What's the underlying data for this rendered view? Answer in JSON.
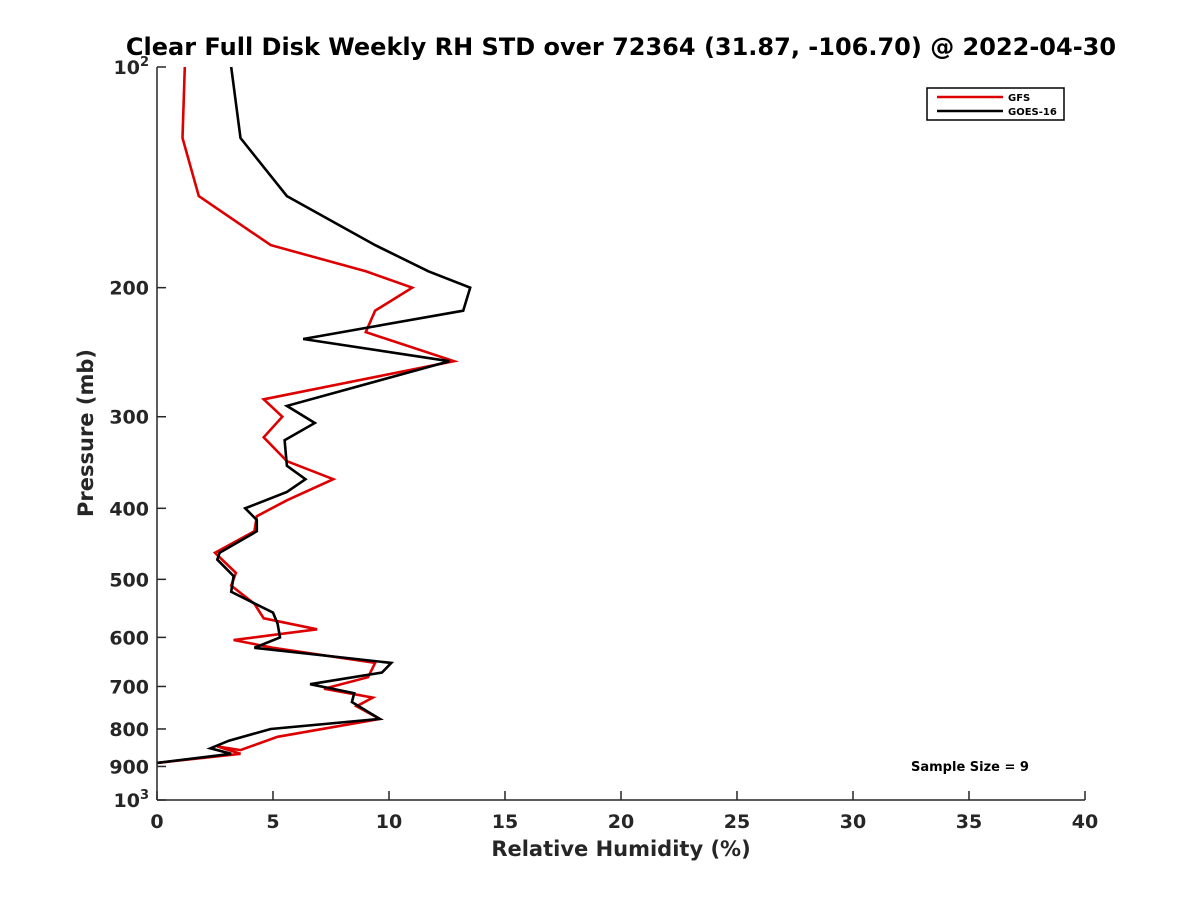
{
  "chart_data": {
    "type": "line",
    "title": "Clear Full Disk Weekly RH STD over 72364 (31.87, -106.70) @ 2022-04-30",
    "xlabel": "Relative Humidity (%)",
    "ylabel": "Pressure (mb)",
    "xlim": [
      0,
      40
    ],
    "ylim": [
      100,
      1000
    ],
    "y_scale": "log",
    "y_reversed": true,
    "x_ticks": [
      "0",
      "5",
      "10",
      "15",
      "20",
      "25",
      "30",
      "35",
      "40"
    ],
    "y_ticks": [
      {
        "value": 100,
        "base": "10",
        "exp": "2"
      },
      {
        "value": 200,
        "label": "200"
      },
      {
        "value": 300,
        "label": "300"
      },
      {
        "value": 400,
        "label": "400"
      },
      {
        "value": 500,
        "label": "500"
      },
      {
        "value": 600,
        "label": "600"
      },
      {
        "value": 700,
        "label": "700"
      },
      {
        "value": 800,
        "label": "800"
      },
      {
        "value": 900,
        "label": "900"
      },
      {
        "value": 1000,
        "base": "10",
        "exp": "3"
      }
    ],
    "grid": false,
    "legend_position": "top-right",
    "annotation": "Sample Size = 9",
    "series": [
      {
        "name": "GFS",
        "color": "#dd0000",
        "points": [
          [
            1.2,
            100
          ],
          [
            1.1,
            125
          ],
          [
            1.8,
            150
          ],
          [
            4.9,
            175
          ],
          [
            9.0,
            190
          ],
          [
            11.0,
            200
          ],
          [
            9.4,
            215
          ],
          [
            9.0,
            230
          ],
          [
            12.8,
            252
          ],
          [
            4.6,
            284
          ],
          [
            5.4,
            300
          ],
          [
            4.6,
            320
          ],
          [
            5.6,
            345
          ],
          [
            7.6,
            365
          ],
          [
            5.6,
            390
          ],
          [
            4.3,
            410
          ],
          [
            4.2,
            430
          ],
          [
            2.5,
            460
          ],
          [
            3.4,
            490
          ],
          [
            3.2,
            510
          ],
          [
            4.2,
            540
          ],
          [
            4.6,
            565
          ],
          [
            6.9,
            585
          ],
          [
            3.3,
            605
          ],
          [
            5.0,
            620
          ],
          [
            9.4,
            650
          ],
          [
            9.1,
            680
          ],
          [
            7.2,
            705
          ],
          [
            9.3,
            725
          ],
          [
            8.6,
            745
          ],
          [
            9.6,
            775
          ],
          [
            5.2,
            820
          ],
          [
            3.6,
            855
          ],
          [
            2.6,
            845
          ],
          [
            3.6,
            865
          ],
          [
            0.0,
            890
          ]
        ]
      },
      {
        "name": "GOES-16",
        "color": "#000000",
        "points": [
          [
            3.2,
            100
          ],
          [
            3.6,
            125
          ],
          [
            5.6,
            150
          ],
          [
            9.4,
            175
          ],
          [
            11.7,
            190
          ],
          [
            13.5,
            200
          ],
          [
            13.2,
            215
          ],
          [
            6.3,
            235
          ],
          [
            12.6,
            252
          ],
          [
            5.6,
            290
          ],
          [
            6.8,
            306
          ],
          [
            5.5,
            323
          ],
          [
            5.6,
            350
          ],
          [
            6.4,
            365
          ],
          [
            5.6,
            380
          ],
          [
            3.8,
            400
          ],
          [
            4.3,
            415
          ],
          [
            4.3,
            430
          ],
          [
            2.7,
            460
          ],
          [
            2.6,
            470
          ],
          [
            3.3,
            495
          ],
          [
            3.2,
            520
          ],
          [
            5.0,
            555
          ],
          [
            5.2,
            575
          ],
          [
            5.3,
            600
          ],
          [
            4.2,
            620
          ],
          [
            10.1,
            650
          ],
          [
            9.7,
            670
          ],
          [
            6.6,
            695
          ],
          [
            8.5,
            715
          ],
          [
            8.4,
            735
          ],
          [
            9.0,
            755
          ],
          [
            9.6,
            775
          ],
          [
            4.9,
            800
          ],
          [
            3.1,
            830
          ],
          [
            2.3,
            850
          ],
          [
            3.2,
            865
          ],
          [
            0.0,
            890
          ]
        ]
      }
    ]
  }
}
